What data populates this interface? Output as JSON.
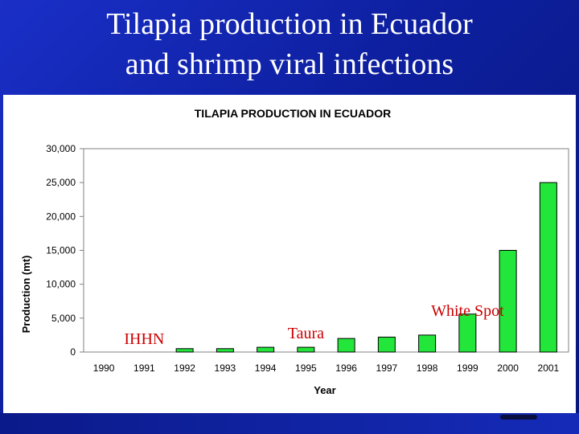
{
  "slide": {
    "title_line_1": "Tilapia production in Ecuador",
    "title_line_2": "and shrimp viral infections"
  },
  "colors": {
    "background": "#1124b4",
    "bar_fill": "#22e63a",
    "bar_stroke": "#000000",
    "annotation_text": "#cc0000"
  },
  "chart_data": {
    "type": "bar",
    "title": "TILAPIA PRODUCTION IN ECUADOR",
    "xlabel": "Year",
    "ylabel": "Production (mt)",
    "categories": [
      "1990",
      "1991",
      "1992",
      "1993",
      "1994",
      "1995",
      "1996",
      "1997",
      "1998",
      "1999",
      "2000",
      "2001"
    ],
    "values": [
      0,
      0,
      500,
      500,
      700,
      700,
      2000,
      2200,
      2500,
      5600,
      15000,
      25000
    ],
    "ylim": [
      0,
      30000
    ],
    "yticks": [
      0,
      5000,
      10000,
      15000,
      20000,
      25000,
      30000
    ],
    "ytick_labels": [
      "0",
      "5,000",
      "10,000",
      "15,000",
      "20,000",
      "25,000",
      "30,000"
    ],
    "grid": false,
    "legend": "none",
    "annotations": [
      {
        "text": "IHHN",
        "year": "1991"
      },
      {
        "text": "Taura",
        "year": "1995"
      },
      {
        "text": "White Spot",
        "year": "1999"
      }
    ]
  }
}
